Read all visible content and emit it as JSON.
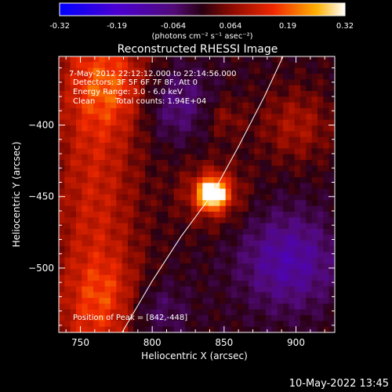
{
  "chart_data": {
    "type": "heatmap",
    "title": "Reconstructed RHESSI Image",
    "xlabel": "Heliocentric X (arcsec)",
    "ylabel": "Heliocentric Y (arcsec)",
    "xlim": [
      735,
      927
    ],
    "ylim": [
      -545,
      -352
    ],
    "x_ticks": [
      750,
      800,
      850,
      900
    ],
    "y_ticks": [
      -500,
      -450,
      -400
    ],
    "colorbar": {
      "ticks": [
        "-0.32",
        "-0.19",
        "-0.064",
        "0.064",
        "0.19",
        "0.32"
      ],
      "range": [
        -0.32,
        0.32
      ],
      "unit_label": "(photons cm⁻² s⁻¹ asec⁻²)"
    },
    "annotations": {
      "time_range": "7-May-2012 22:12:12.000 to 22:14:56.000",
      "detectors": "Detectors: 3F 5F 6F 7F 8F, Att 0",
      "energy_range": "Energy Range: 3.0 - 6.0 keV",
      "clean": "Clean",
      "total_counts": "Total counts: 1.94E+04",
      "peak_position": "Position of Peak = [842,-448]"
    },
    "peak": {
      "x": 842,
      "y": -448,
      "value": 0.32
    },
    "limb_curve": [
      [
        779,
        -545
      ],
      [
        800,
        -509
      ],
      [
        820,
        -478
      ],
      [
        842,
        -448
      ],
      [
        860,
        -415
      ],
      [
        878,
        -380
      ],
      [
        891,
        -352
      ]
    ]
  },
  "footer": {
    "date": "10-May-2022 13:45"
  },
  "colors": {
    "background": "#000000",
    "text": "#ffffff",
    "limb": "#ffffff"
  }
}
